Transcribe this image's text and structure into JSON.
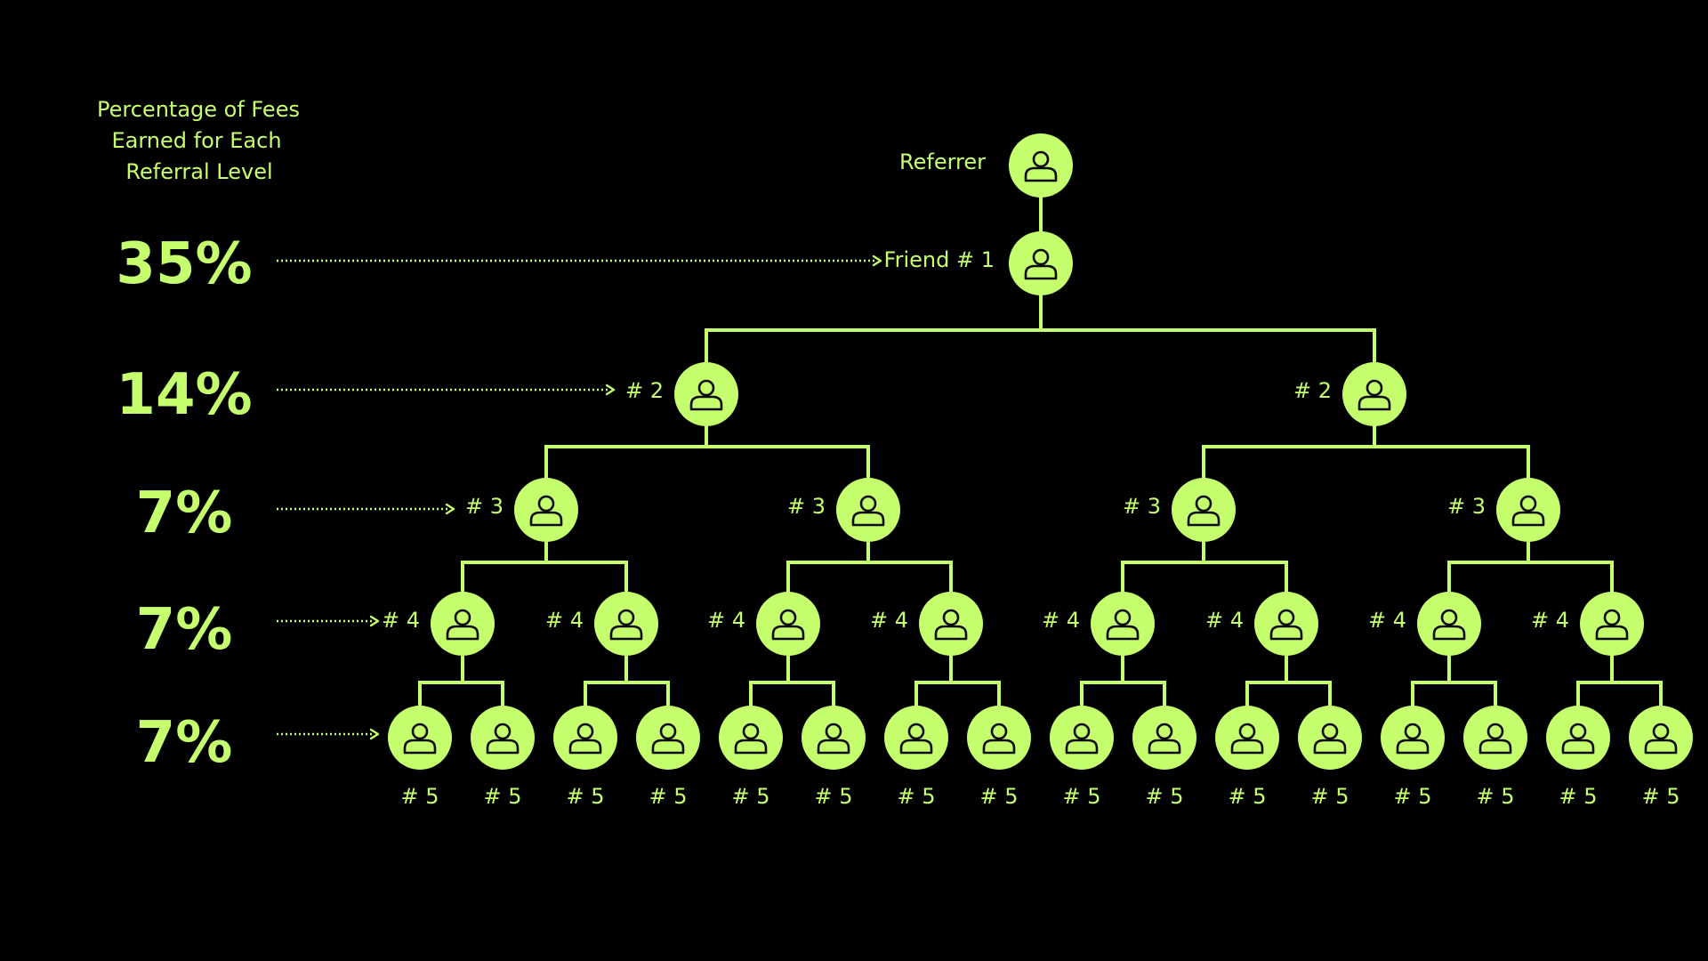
{
  "colors": {
    "background": "#000000",
    "accent": "#c5ff6e",
    "icon_stroke": "#0a0a0a"
  },
  "heading": {
    "lines": [
      "Percentage of Fees",
      "Earned for Each",
      "Referral Level"
    ]
  },
  "levels": [
    {
      "percent": "35%"
    },
    {
      "percent": "14%"
    },
    {
      "percent": "7%"
    },
    {
      "percent": "7%"
    },
    {
      "percent": "7%"
    }
  ],
  "labels": {
    "referrer": "Referrer",
    "friend1": "Friend # 1",
    "level2": "# 2",
    "level3": "# 3",
    "level4": "# 4",
    "level5": "# 5"
  },
  "icon": "person-icon"
}
